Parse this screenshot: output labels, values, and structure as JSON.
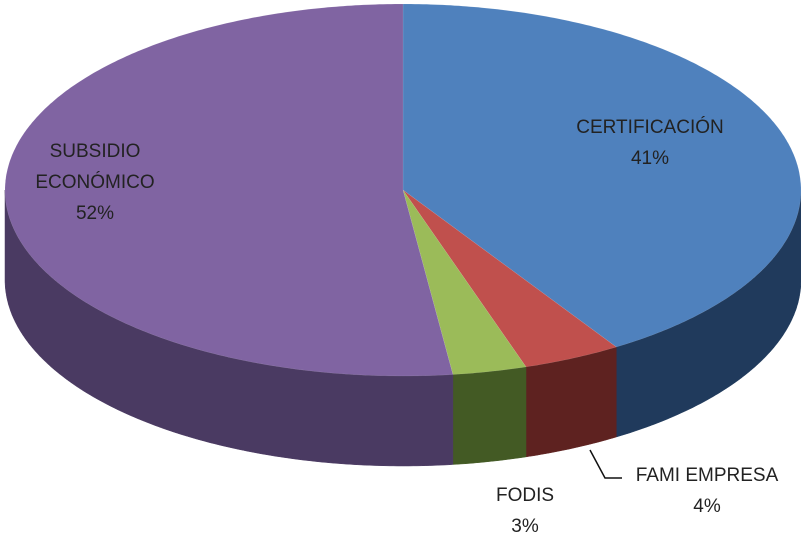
{
  "chart_data": {
    "type": "pie",
    "three_d": true,
    "categories": [
      "CERTIFICACIÓN",
      "FAMI EMPRESA",
      "FODIS",
      "SUBSIDIO ECONÓMICO"
    ],
    "values": [
      41,
      4,
      3,
      52
    ],
    "value_labels": [
      "41%",
      "4%",
      "3%",
      "52%"
    ],
    "colors": [
      "#4f81bd",
      "#c0504d",
      "#9bbb59",
      "#8064a2"
    ],
    "side_colors": [
      "#203a5c",
      "#5e2220",
      "#435a24",
      "#4a3a62"
    ]
  }
}
